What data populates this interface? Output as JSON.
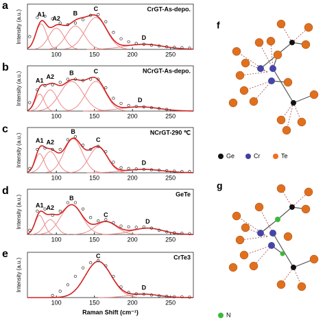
{
  "chart_data": [
    {
      "type": "scatter",
      "panel": "a",
      "sample": "CrGT-As-depo.",
      "ylabel": "Intensity (a.u.)",
      "x": [
        65,
        75,
        85,
        95,
        105,
        115,
        125,
        135,
        145,
        155,
        165,
        175,
        185,
        195,
        205,
        215,
        225,
        235,
        245,
        255,
        265,
        275
      ],
      "series": [
        {
          "color": "#333333",
          "values": [
            0.3,
            0.75,
            0.78,
            0.72,
            0.62,
            0.58,
            0.62,
            0.7,
            0.8,
            0.82,
            0.65,
            0.4,
            0.25,
            0.18,
            0.14,
            0.12,
            0.1,
            0.08,
            0.06,
            0.05,
            0.04,
            0.03
          ]
        }
      ],
      "peaks": [
        {
          "name": "A1",
          "center": 80,
          "height": 0.6,
          "width": 7
        },
        {
          "name": "A2",
          "center": 100,
          "height": 0.5,
          "width": 10
        },
        {
          "name": "B",
          "center": 125,
          "height": 0.55,
          "width": 12
        },
        {
          "name": "C",
          "center": 152,
          "height": 0.75,
          "width": 14
        },
        {
          "name": "D",
          "center": 215,
          "height": 0.12,
          "width": 25
        }
      ],
      "fit_color": "#d42020",
      "peak_color": "#ee8888",
      "xlim": [
        62,
        280
      ],
      "ylim": [
        0,
        1
      ],
      "xticks": [
        100,
        150,
        200,
        250
      ]
    },
    {
      "type": "scatter",
      "panel": "b",
      "sample": "NCrGT-As-depo.",
      "ylabel": "Intensity (a.u.)",
      "x": [
        65,
        75,
        85,
        95,
        105,
        115,
        125,
        135,
        145,
        155,
        165,
        175,
        185,
        195,
        205,
        215,
        225,
        235,
        245,
        255,
        265,
        275
      ],
      "series": [
        {
          "color": "#333333",
          "values": [
            0.2,
            0.5,
            0.6,
            0.62,
            0.68,
            0.75,
            0.75,
            0.72,
            0.75,
            0.75,
            0.55,
            0.3,
            0.18,
            0.13,
            0.11,
            0.1,
            0.08,
            0.06,
            0.04,
            null,
            null,
            null
          ]
        }
      ],
      "peaks": [
        {
          "name": "A1",
          "center": 78,
          "height": 0.4,
          "width": 6
        },
        {
          "name": "A2",
          "center": 92,
          "height": 0.5,
          "width": 9
        },
        {
          "name": "B",
          "center": 120,
          "height": 0.7,
          "width": 15
        },
        {
          "name": "C",
          "center": 152,
          "height": 0.7,
          "width": 13
        },
        {
          "name": "D",
          "center": 210,
          "height": 0.1,
          "width": 25
        }
      ],
      "fit_color": "#d42020",
      "peak_color": "#ee8888",
      "xlim": [
        62,
        280
      ],
      "ylim": [
        0,
        1
      ],
      "xticks": [
        100,
        150,
        200,
        250
      ]
    },
    {
      "type": "scatter",
      "panel": "c",
      "sample": "NCrGT-290 ℃",
      "ylabel": "Intensity (a.u.)",
      "x": [
        65,
        75,
        85,
        95,
        105,
        115,
        125,
        135,
        145,
        155,
        165,
        175,
        185,
        195,
        205,
        215,
        225,
        235,
        245,
        255,
        265,
        275
      ],
      "series": [
        {
          "color": "#333333",
          "values": [
            0.1,
            0.55,
            0.58,
            0.55,
            0.55,
            0.78,
            0.85,
            0.65,
            0.55,
            0.62,
            0.5,
            0.25,
            0.12,
            0.1,
            0.09,
            0.08,
            0.07,
            0.06,
            0.05,
            0.04,
            0.03,
            0.03
          ]
        }
      ],
      "peaks": [
        {
          "name": "A1",
          "center": 78,
          "height": 0.45,
          "width": 6
        },
        {
          "name": "A2",
          "center": 92,
          "height": 0.5,
          "width": 9
        },
        {
          "name": "B",
          "center": 122,
          "height": 0.8,
          "width": 12
        },
        {
          "name": "C",
          "center": 155,
          "height": 0.6,
          "width": 12
        },
        {
          "name": "D",
          "center": 215,
          "height": 0.08,
          "width": 25
        }
      ],
      "fit_color": "#d42020",
      "peak_color": "#ee8888",
      "xlim": [
        62,
        280
      ],
      "ylim": [
        0,
        1
      ],
      "xticks": [
        100,
        150,
        200,
        250
      ]
    },
    {
      "type": "scatter",
      "panel": "d",
      "sample": "GeTe",
      "ylabel": "Intensity (a.u.)",
      "x": [
        65,
        75,
        85,
        95,
        105,
        115,
        125,
        135,
        145,
        155,
        165,
        175,
        185,
        195,
        205,
        215,
        225,
        235,
        245,
        255,
        265,
        275
      ],
      "series": [
        {
          "color": "#333333",
          "values": [
            0.1,
            0.55,
            0.6,
            0.45,
            0.55,
            0.75,
            0.75,
            0.6,
            0.4,
            0.32,
            0.35,
            0.28,
            0.2,
            0.18,
            0.17,
            0.18,
            0.15,
            0.1,
            0.06,
            0.04,
            0.03,
            0.02
          ]
        }
      ],
      "peaks": [
        {
          "name": "A1",
          "center": 78,
          "height": 0.45,
          "width": 6
        },
        {
          "name": "A2",
          "center": 92,
          "height": 0.35,
          "width": 8
        },
        {
          "name": "B",
          "center": 120,
          "height": 0.7,
          "width": 14
        },
        {
          "name": "C",
          "center": 165,
          "height": 0.3,
          "width": 14
        },
        {
          "name": "D",
          "center": 220,
          "height": 0.15,
          "width": 20
        }
      ],
      "fit_color": "#d42020",
      "peak_color": "#ee8888",
      "xlim": [
        62,
        280
      ],
      "ylim": [
        0,
        1
      ],
      "xticks": [
        100,
        150,
        200,
        250
      ]
    },
    {
      "type": "scatter",
      "panel": "e",
      "sample": "CrTe3",
      "ylabel": "Intensity (a.u.)",
      "xlabel": "Raman Shift (cm⁻¹)",
      "x": [
        65,
        75,
        85,
        95,
        105,
        115,
        125,
        135,
        145,
        155,
        165,
        175,
        185,
        195,
        205,
        215,
        225,
        235,
        245,
        255,
        265,
        275
      ],
      "series": [
        {
          "color": "#333333",
          "values": [
            null,
            null,
            null,
            0.05,
            0.15,
            0.3,
            0.5,
            0.7,
            0.82,
            0.87,
            0.75,
            0.5,
            0.25,
            0.12,
            0.09,
            0.08,
            0.06,
            0.04,
            0.03,
            0.02,
            0.02,
            0.01
          ]
        }
      ],
      "peaks": [
        {
          "name": "C",
          "center": 155,
          "height": 0.85,
          "width": 17
        },
        {
          "name": "D",
          "center": 215,
          "height": 0.08,
          "width": 20
        }
      ],
      "fit_color": "#d42020",
      "peak_color": "#ee8888",
      "xlim": [
        62,
        280
      ],
      "ylim": [
        0,
        1
      ],
      "xticks": [
        100,
        150,
        200,
        250
      ]
    }
  ],
  "structures": [
    {
      "label": "f",
      "legend": [
        {
          "name": "Ge",
          "color": "#111111"
        },
        {
          "name": "Cr",
          "color": "#4040a0"
        },
        {
          "name": "Te",
          "color": "#f07020"
        }
      ]
    },
    {
      "label": "g",
      "legend": [
        {
          "name": "N",
          "color": "#3cb83c"
        }
      ]
    }
  ]
}
